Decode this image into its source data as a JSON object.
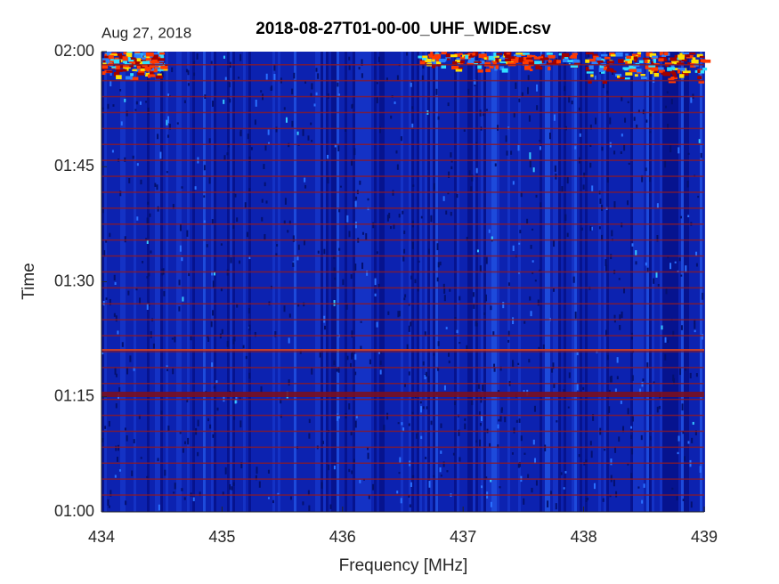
{
  "chart_data": {
    "type": "spectrogram",
    "title": "2018-08-27T01-00-00_UHF_WIDE.csv",
    "date_label": "Aug 27, 2018",
    "x_label": "Frequency [MHz]",
    "y_label": "Time",
    "xlim": [
      434,
      439
    ],
    "xticks": [
      434,
      435,
      436,
      437,
      438,
      439
    ],
    "ylim": [
      "01:00",
      "02:00"
    ],
    "yticks": [
      "01:00",
      "01:15",
      "01:30",
      "01:45",
      "02:00"
    ]
  }
}
